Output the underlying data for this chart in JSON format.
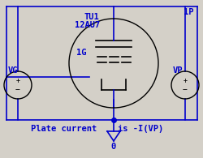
{
  "bg_color": "#d4d0c8",
  "blue": "#0000cc",
  "black": "#000000",
  "fig_width": 2.51,
  "fig_height": 1.95,
  "dpi": 100,
  "title_text": "TU1",
  "subtitle_text": "12AU7",
  "label_1G": "1G",
  "label_1P": "1P",
  "label_VG": "VG",
  "label_VP": "VP",
  "label_plate": "Plate current",
  "label_is": "is -I(VP)",
  "label_0": "0"
}
